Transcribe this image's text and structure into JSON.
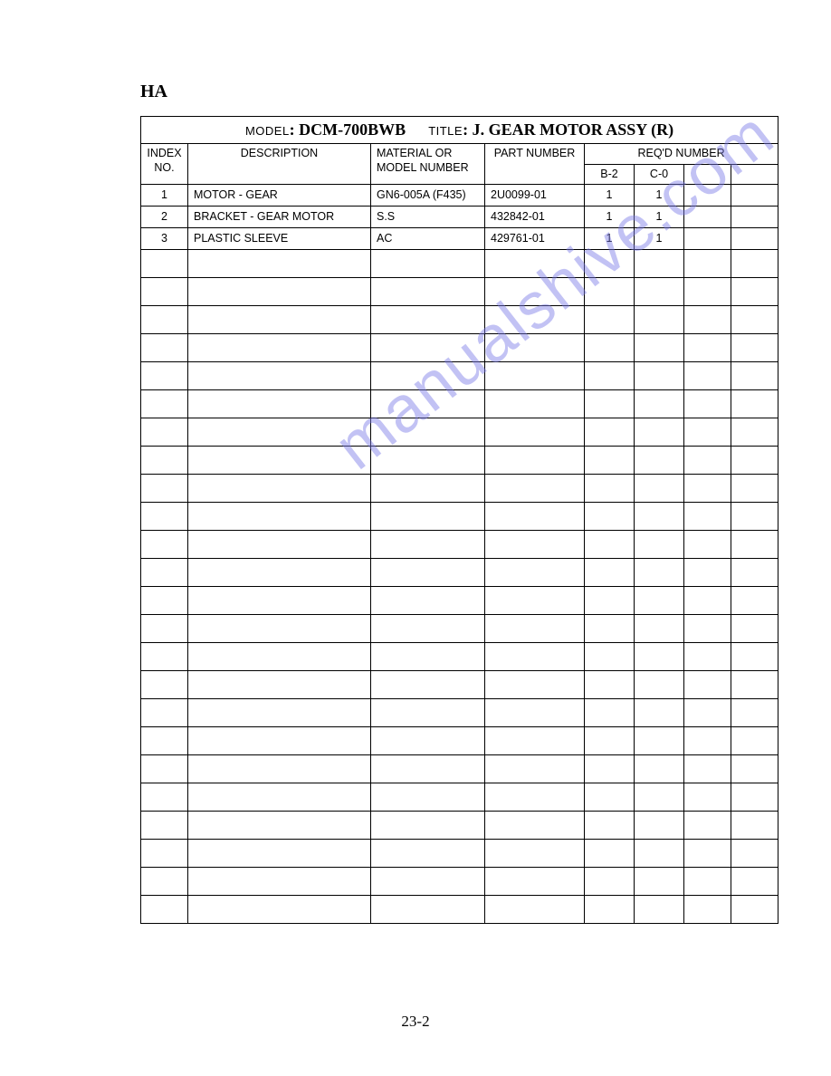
{
  "corner_label": "HA",
  "header": {
    "model_label": "MODEL",
    "model_value": "DCM-700BWB",
    "title_label": "TITLE",
    "title_value": "J. GEAR MOTOR ASSY (R)"
  },
  "columns": {
    "index": "INDEX NO.",
    "description": "DESCRIPTION",
    "material": "MATERIAL OR MODEL NUMBER",
    "part": "PART NUMBER",
    "reqd": "REQ'D NUMBER",
    "sub": [
      "B-2",
      "C-0",
      "",
      ""
    ]
  },
  "rows": [
    {
      "index": "1",
      "description": "MOTOR - GEAR",
      "material": "GN6-005A (F435)",
      "part": "2U0099-01",
      "q": [
        "1",
        "1",
        "",
        ""
      ]
    },
    {
      "index": "2",
      "description": "BRACKET - GEAR MOTOR",
      "material": "S.S",
      "part": "432842-01",
      "q": [
        "1",
        "1",
        "",
        ""
      ]
    },
    {
      "index": "3",
      "description": "PLASTIC SLEEVE",
      "material": "AC",
      "part": "429761-01",
      "q": [
        "1",
        "1",
        "",
        ""
      ]
    }
  ],
  "empty_row_count": 24,
  "page_number": "23-2",
  "watermark_text": "manualshive.com",
  "colors": {
    "text": "#000000",
    "border": "#000000",
    "background": "#ffffff",
    "watermark": "#7a7ae8"
  }
}
